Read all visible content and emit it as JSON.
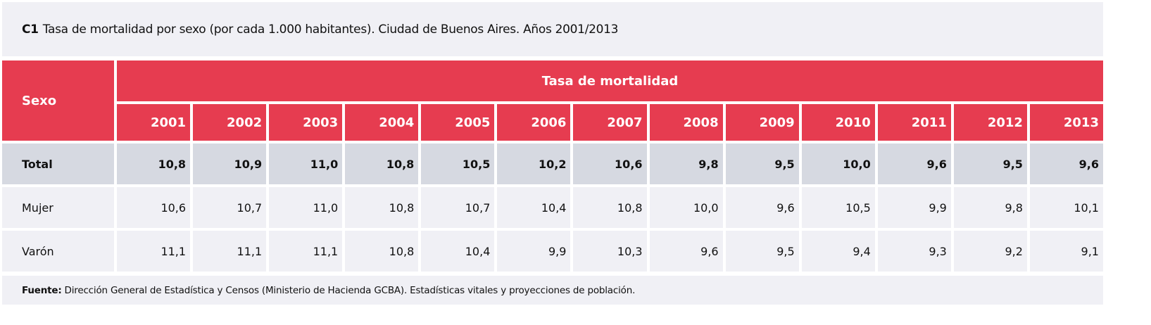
{
  "title": {
    "code": "C1",
    "text": "Tasa de mortalidad por sexo (por cada 1.000 habitantes). Ciudad de Buenos Aires. Años 2001/2013"
  },
  "header": {
    "row_label": "Sexo",
    "group_label": "Tasa de mortalidad",
    "years": [
      "2001",
      "2002",
      "2003",
      "2004",
      "2005",
      "2006",
      "2007",
      "2008",
      "2009",
      "2010",
      "2011",
      "2012",
      "2013"
    ]
  },
  "rows": [
    {
      "label": "Total",
      "values": [
        "10,8",
        "10,9",
        "11,0",
        "10,8",
        "10,5",
        "10,2",
        "10,6",
        "9,8",
        "9,5",
        "10,0",
        "9,6",
        "9,5",
        "9,6"
      ]
    },
    {
      "label": "Mujer",
      "values": [
        "10,6",
        "10,7",
        "11,0",
        "10,8",
        "10,7",
        "10,4",
        "10,8",
        "10,0",
        "9,6",
        "10,5",
        "9,9",
        "9,8",
        "10,1"
      ]
    },
    {
      "label": "Varón",
      "values": [
        "11,1",
        "11,1",
        "11,1",
        "10,8",
        "10,4",
        "9,9",
        "10,3",
        "9,6",
        "9,5",
        "9,4",
        "9,3",
        "9,2",
        "9,1"
      ]
    }
  ],
  "footer": {
    "label": "Fuente",
    "separator": ":",
    "text": "Dirección General de Estadística y Censos (Ministerio de Hacienda GCBA). Estadísticas vitales y proyecciones de población."
  },
  "colors": {
    "header_bg": "#e63c50",
    "total_bg": "#d6d9e1",
    "row_bg": "#f0f0f5"
  }
}
